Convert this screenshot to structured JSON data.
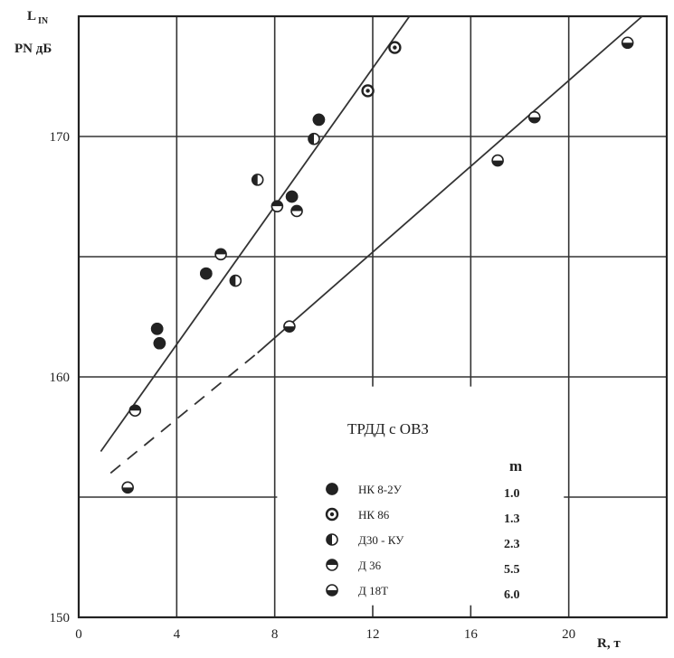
{
  "chart_data": {
    "type": "scatter",
    "y_title_line1": "L",
    "y_title_sub": "IN",
    "y_title_line2": "PN  дБ",
    "x_title": "R, т",
    "xlim": [
      0,
      24
    ],
    "ylim": [
      150,
      175
    ],
    "x_tick_labels": [
      {
        "value": 0,
        "label": "0"
      },
      {
        "value": 4,
        "label": "4"
      },
      {
        "value": 8,
        "label": "8"
      },
      {
        "value": 12,
        "label": "12"
      },
      {
        "value": 16,
        "label": "16"
      },
      {
        "value": 20,
        "label": "20"
      }
    ],
    "y_tick_labels": [
      {
        "value": 150,
        "label": "150"
      },
      {
        "value": 160,
        "label": "160"
      },
      {
        "value": 170,
        "label": "170"
      }
    ],
    "grid": true,
    "legend_title": "ТРДД  с  ОВЗ",
    "legend_m_header": "m",
    "legend_position": "bottom-right",
    "series": [
      {
        "name": "НК 8-2У",
        "m": "1.0",
        "marker": "filled",
        "points": [
          [
            3.2,
            162.0
          ],
          [
            3.3,
            161.4
          ],
          [
            5.2,
            164.3
          ],
          [
            8.7,
            167.5
          ],
          [
            9.8,
            170.7
          ]
        ]
      },
      {
        "name": "НК 86",
        "m": "1.3",
        "marker": "open",
        "points": [
          [
            11.8,
            171.9
          ],
          [
            12.9,
            173.7
          ]
        ]
      },
      {
        "name": "Д30 - КУ",
        "m": "2.3",
        "marker": "half-left",
        "points": [
          [
            7.3,
            168.2
          ],
          [
            9.6,
            169.9
          ],
          [
            6.4,
            164.0
          ]
        ]
      },
      {
        "name": "Д 36",
        "m": "5.5",
        "marker": "half-top",
        "points": [
          [
            2.3,
            158.6
          ],
          [
            8.1,
            167.1
          ],
          [
            8.9,
            166.9
          ],
          [
            5.8,
            165.1
          ]
        ]
      },
      {
        "name": "Д 18Т",
        "m": "6.0",
        "marker": "half-bottom",
        "points": [
          [
            2.0,
            155.4
          ],
          [
            8.6,
            162.1
          ],
          [
            17.1,
            169.0
          ],
          [
            18.6,
            170.8
          ],
          [
            22.4,
            173.9
          ]
        ]
      }
    ],
    "fit_lines": [
      {
        "style": "solid",
        "points": [
          [
            0.9,
            156.9
          ],
          [
            13.5,
            175.0
          ]
        ]
      },
      {
        "style": "dashed",
        "points": [
          [
            1.3,
            156.0
          ],
          [
            7.3,
            161.0
          ]
        ]
      },
      {
        "style": "solid",
        "points": [
          [
            7.3,
            161.0
          ],
          [
            23.0,
            175.0
          ]
        ]
      }
    ]
  }
}
